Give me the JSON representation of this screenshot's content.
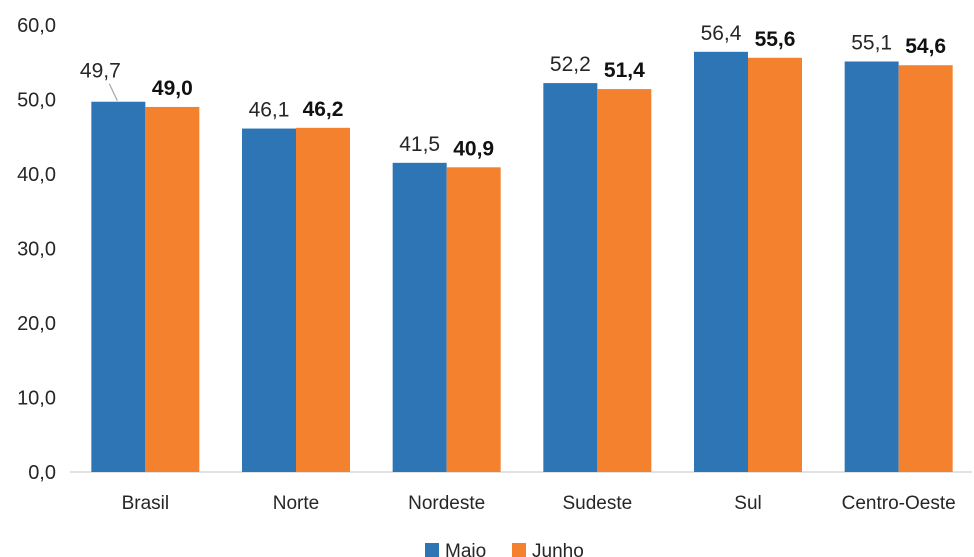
{
  "chart_data": {
    "type": "bar",
    "categories": [
      "Brasil",
      "Norte",
      "Nordeste",
      "Sudeste",
      "Sul",
      "Centro-Oeste"
    ],
    "series": [
      {
        "name": "Maio",
        "values": [
          49.7,
          46.1,
          41.5,
          52.2,
          56.4,
          55.1
        ],
        "labels": [
          "49,7",
          "46,1",
          "41,5",
          "52,2",
          "56,4",
          "55,1"
        ],
        "color": "#2E75B6"
      },
      {
        "name": "Junho",
        "values": [
          49.0,
          46.2,
          40.9,
          51.4,
          55.6,
          54.6
        ],
        "labels": [
          "49,0",
          "46,2",
          "40,9",
          "51,4",
          "55,6",
          "54,6"
        ],
        "color": "#F4812D"
      }
    ],
    "yticks": [
      "0,0",
      "10,0",
      "20,0",
      "30,0",
      "40,0",
      "50,0",
      "60,0"
    ],
    "ylim": [
      0,
      60
    ],
    "grid": false,
    "legend_position": "bottom"
  }
}
